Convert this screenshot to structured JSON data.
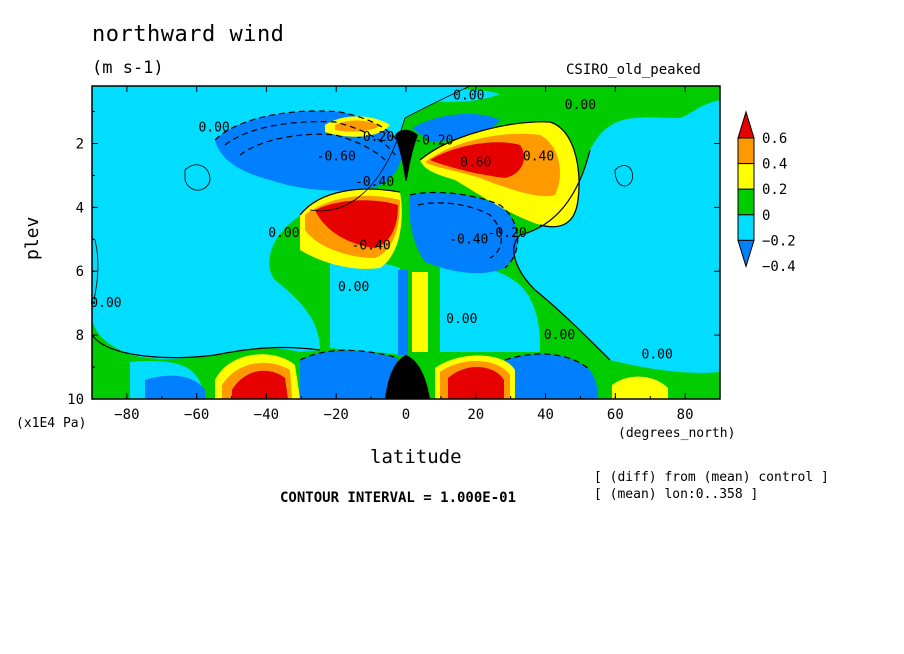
{
  "chart_data": {
    "type": "contour",
    "title": "northward wind",
    "units": "(m s-1)",
    "model": "CSIRO_old_peaked",
    "xlabel": "latitude",
    "x_units": "(degrees_north)",
    "ylabel": "plev",
    "y_units": "(x1E4 Pa)",
    "xlim": [
      -90,
      90
    ],
    "ylim": [
      10,
      0.2
    ],
    "x_ticks": [
      -80,
      -60,
      -40,
      -20,
      0,
      20,
      40,
      60,
      80
    ],
    "y_ticks": [
      2,
      4,
      6,
      8,
      10
    ],
    "contour_interval": "CONTOUR INTERVAL = 1.000E-01",
    "notes": [
      "[ (diff) from (mean) control ]",
      "[ (mean) lon:0..358 ]"
    ],
    "legend": {
      "levels": [
        "0.6",
        "0.4",
        "0.2",
        "0",
        "−0.2",
        "−0.4"
      ],
      "colors": [
        "#e60000",
        "#ff9900",
        "#ffff00",
        "#00cc00",
        "#00ddff",
        "#0080ff"
      ]
    },
    "contour_labels": [
      {
        "lat": 18,
        "plev": 0.5,
        "text": "0.00"
      },
      {
        "lat": 50,
        "plev": 0.8,
        "text": "0.00"
      },
      {
        "lat": -55,
        "plev": 1.5,
        "text": "0.00"
      },
      {
        "lat": -20,
        "plev": 2.4,
        "text": "-0.60"
      },
      {
        "lat": -9,
        "plev": 1.8,
        "text": "-0.20"
      },
      {
        "lat": 8,
        "plev": 1.9,
        "text": "-0.20"
      },
      {
        "lat": 20,
        "plev": 2.6,
        "text": "0.60"
      },
      {
        "lat": 38,
        "plev": 2.4,
        "text": "0.40"
      },
      {
        "lat": -9,
        "plev": 3.2,
        "text": "-0.40"
      },
      {
        "lat": -35,
        "plev": 4.8,
        "text": "0.00"
      },
      {
        "lat": -10,
        "plev": 5.2,
        "text": "-0.40"
      },
      {
        "lat": 18,
        "plev": 5.0,
        "text": "-0.40"
      },
      {
        "lat": 29,
        "plev": 4.8,
        "text": "-0.20"
      },
      {
        "lat": -15,
        "plev": 6.5,
        "text": "0.00"
      },
      {
        "lat": -86,
        "plev": 7.0,
        "text": "0.00"
      },
      {
        "lat": 16,
        "plev": 7.5,
        "text": "0.00"
      },
      {
        "lat": 44,
        "plev": 8.0,
        "text": "0.00"
      },
      {
        "lat": 72,
        "plev": 8.6,
        "text": "0.00"
      }
    ]
  }
}
